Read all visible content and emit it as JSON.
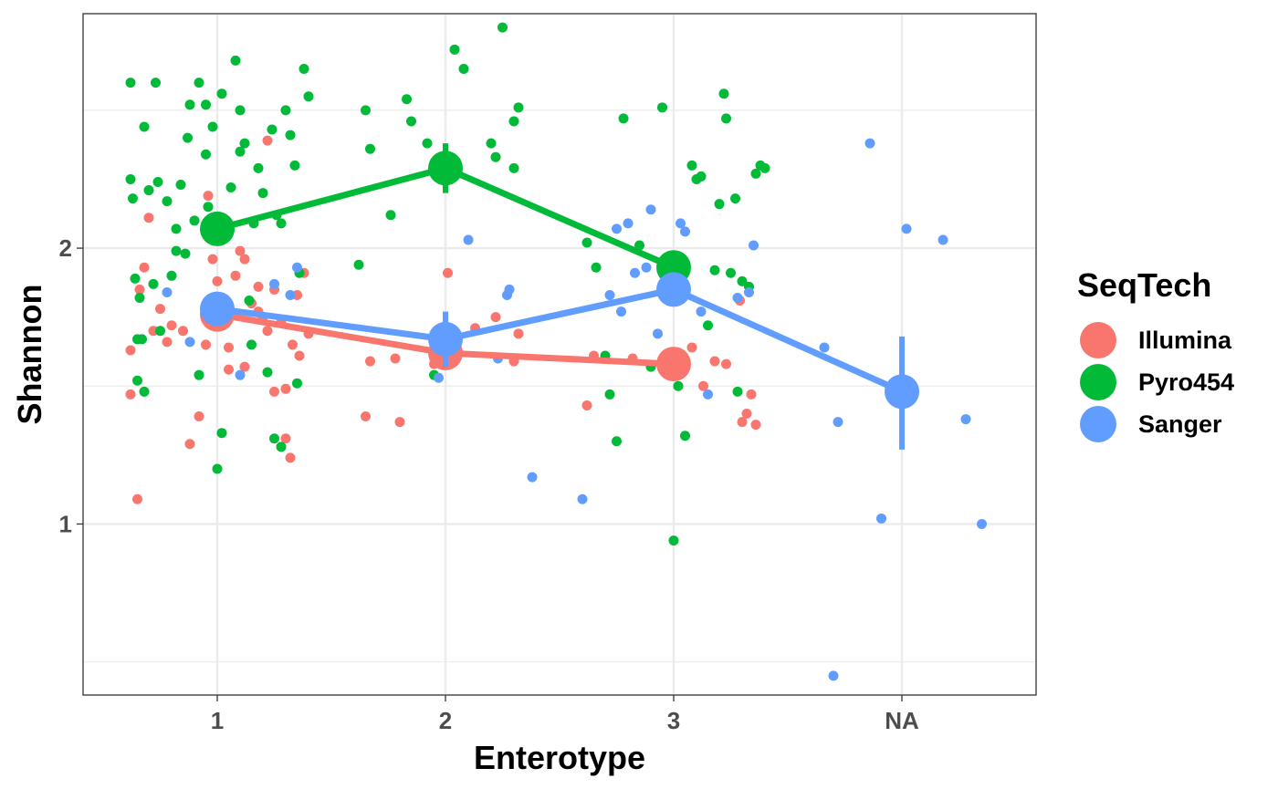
{
  "chart_data": {
    "type": "scatter",
    "xlabel": "Enterotype",
    "ylabel": "Shannon",
    "categories": [
      "1",
      "2",
      "3",
      "NA"
    ],
    "y_ticks": [
      1,
      2
    ],
    "ylim": [
      0.38,
      2.85
    ],
    "grid": true,
    "legend": {
      "title": "SeqTech",
      "placement": "right",
      "entries": [
        {
          "name": "Illumina",
          "color": "#F8766D"
        },
        {
          "name": "Pyro454",
          "color": "#00BA38"
        },
        {
          "name": "Sanger",
          "color": "#619CFF"
        }
      ]
    },
    "series": [
      {
        "name": "Illumina",
        "color": "#F8766D",
        "summary": [
          {
            "x": "1",
            "mean": 1.76,
            "lo": 1.71,
            "hi": 1.81
          },
          {
            "x": "2",
            "mean": 1.62,
            "lo": 1.58,
            "hi": 1.66
          },
          {
            "x": "3",
            "mean": 1.58,
            "lo": 1.54,
            "hi": 1.62
          }
        ],
        "points": [
          [
            0.62,
            1.63
          ],
          [
            0.66,
            1.85
          ],
          [
            0.68,
            1.93
          ],
          [
            0.7,
            2.11
          ],
          [
            0.72,
            1.7
          ],
          [
            0.75,
            1.78
          ],
          [
            0.8,
            1.72
          ],
          [
            0.85,
            1.7
          ],
          [
            0.88,
            1.29
          ],
          [
            0.92,
            1.39
          ],
          [
            0.95,
            1.65
          ],
          [
            0.96,
            2.19
          ],
          [
            0.98,
            1.96
          ],
          [
            1.0,
            1.88
          ],
          [
            1.05,
            1.64
          ],
          [
            1.08,
            1.9
          ],
          [
            1.1,
            1.99
          ],
          [
            1.12,
            1.96
          ],
          [
            1.15,
            1.8
          ],
          [
            1.18,
            1.86
          ],
          [
            1.2,
            1.75
          ],
          [
            1.22,
            1.7
          ],
          [
            1.25,
            1.48
          ],
          [
            1.25,
            1.85
          ],
          [
            1.28,
            1.73
          ],
          [
            1.3,
            1.31
          ],
          [
            1.32,
            1.24
          ],
          [
            1.33,
            1.65
          ],
          [
            1.35,
            1.83
          ],
          [
            1.36,
            1.61
          ],
          [
            1.38,
            1.91
          ],
          [
            1.4,
            1.69
          ],
          [
            0.65,
            1.09
          ],
          [
            0.62,
            1.47
          ],
          [
            1.22,
            2.39
          ],
          [
            1.12,
            1.57
          ],
          [
            1.18,
            1.77
          ],
          [
            1.3,
            1.49
          ],
          [
            0.78,
            1.66
          ],
          [
            1.05,
            1.56
          ],
          [
            1.65,
            1.39
          ],
          [
            1.67,
            1.59
          ],
          [
            1.8,
            1.37
          ],
          [
            1.78,
            1.6
          ],
          [
            2.01,
            1.91
          ],
          [
            2.13,
            1.71
          ],
          [
            2.22,
            1.75
          ],
          [
            2.3,
            1.59
          ],
          [
            2.32,
            1.69
          ],
          [
            1.95,
            1.58
          ],
          [
            2.62,
            1.43
          ],
          [
            2.65,
            1.61
          ],
          [
            2.82,
            1.6
          ],
          [
            3.08,
            1.64
          ],
          [
            3.13,
            1.5
          ],
          [
            3.18,
            1.59
          ],
          [
            3.23,
            1.58
          ],
          [
            3.3,
            1.37
          ],
          [
            3.32,
            1.4
          ],
          [
            3.34,
            1.47
          ],
          [
            3.36,
            1.36
          ],
          [
            3.29,
            1.81
          ]
        ]
      },
      {
        "name": "Pyro454",
        "color": "#00BA38",
        "summary": [
          {
            "x": "1",
            "mean": 2.07,
            "lo": 2.03,
            "hi": 2.11
          },
          {
            "x": "2",
            "mean": 2.29,
            "lo": 2.2,
            "hi": 2.38
          },
          {
            "x": "3",
            "mean": 1.93,
            "lo": 1.86,
            "hi": 1.99
          }
        ],
        "points": [
          [
            0.62,
            2.6
          ],
          [
            0.62,
            2.25
          ],
          [
            0.63,
            2.18
          ],
          [
            0.64,
            1.89
          ],
          [
            0.65,
            1.52
          ],
          [
            0.66,
            1.82
          ],
          [
            0.67,
            1.67
          ],
          [
            0.68,
            2.44
          ],
          [
            0.7,
            2.21
          ],
          [
            0.72,
            1.87
          ],
          [
            0.74,
            2.24
          ],
          [
            0.75,
            1.7
          ],
          [
            0.78,
            2.17
          ],
          [
            0.8,
            1.9
          ],
          [
            0.82,
            2.07
          ],
          [
            0.84,
            2.23
          ],
          [
            0.86,
            1.98
          ],
          [
            0.88,
            2.52
          ],
          [
            0.9,
            2.1
          ],
          [
            0.92,
            1.54
          ],
          [
            0.95,
            2.34
          ],
          [
            0.96,
            2.15
          ],
          [
            0.98,
            2.44
          ],
          [
            1.0,
            1.2
          ],
          [
            1.02,
            2.56
          ],
          [
            1.04,
            2.1
          ],
          [
            1.06,
            2.22
          ],
          [
            1.08,
            2.68
          ],
          [
            1.1,
            2.5
          ],
          [
            1.12,
            2.38
          ],
          [
            1.14,
            1.81
          ],
          [
            1.16,
            2.09
          ],
          [
            1.18,
            2.29
          ],
          [
            1.2,
            2.2
          ],
          [
            1.22,
            1.55
          ],
          [
            1.24,
            2.43
          ],
          [
            1.26,
            2.12
          ],
          [
            1.28,
            2.09
          ],
          [
            1.3,
            2.5
          ],
          [
            1.32,
            2.41
          ],
          [
            1.34,
            2.3
          ],
          [
            1.36,
            1.91
          ],
          [
            1.38,
            2.65
          ],
          [
            1.4,
            2.55
          ],
          [
            0.68,
            1.48
          ],
          [
            0.65,
            1.67
          ],
          [
            0.73,
            2.6
          ],
          [
            0.87,
            2.4
          ],
          [
            0.95,
            2.52
          ],
          [
            1.02,
            1.33
          ],
          [
            1.15,
            1.65
          ],
          [
            1.25,
            1.31
          ],
          [
            1.35,
            1.51
          ],
          [
            1.28,
            1.28
          ],
          [
            1.1,
            2.35
          ],
          [
            0.92,
            2.6
          ],
          [
            0.82,
            1.99
          ],
          [
            1.65,
            2.5
          ],
          [
            1.67,
            2.36
          ],
          [
            1.76,
            2.12
          ],
          [
            1.83,
            2.54
          ],
          [
            1.85,
            2.46
          ],
          [
            1.92,
            2.38
          ],
          [
            1.95,
            1.54
          ],
          [
            2.04,
            2.72
          ],
          [
            2.08,
            2.65
          ],
          [
            2.2,
            2.38
          ],
          [
            2.25,
            2.8
          ],
          [
            2.3,
            2.46
          ],
          [
            2.32,
            2.51
          ],
          [
            2.22,
            2.33
          ],
          [
            2.3,
            2.29
          ],
          [
            1.62,
            1.94
          ],
          [
            2.62,
            2.02
          ],
          [
            2.66,
            1.93
          ],
          [
            2.7,
            1.61
          ],
          [
            2.72,
            1.47
          ],
          [
            2.75,
            1.3
          ],
          [
            2.78,
            2.47
          ],
          [
            2.85,
            2.01
          ],
          [
            2.9,
            1.57
          ],
          [
            2.95,
            2.51
          ],
          [
            3.0,
            0.94
          ],
          [
            3.02,
            1.5
          ],
          [
            3.05,
            1.32
          ],
          [
            3.08,
            2.3
          ],
          [
            3.1,
            2.25
          ],
          [
            3.12,
            2.26
          ],
          [
            3.15,
            1.72
          ],
          [
            3.18,
            1.92
          ],
          [
            3.2,
            2.16
          ],
          [
            3.22,
            2.56
          ],
          [
            3.23,
            2.47
          ],
          [
            3.25,
            1.91
          ],
          [
            3.27,
            2.18
          ],
          [
            3.3,
            1.88
          ],
          [
            3.33,
            1.86
          ],
          [
            3.36,
            2.27
          ],
          [
            3.38,
            2.3
          ],
          [
            3.4,
            2.29
          ],
          [
            3.28,
            1.48
          ]
        ]
      },
      {
        "name": "Sanger",
        "color": "#619CFF",
        "summary": [
          {
            "x": "1",
            "mean": 1.78,
            "lo": 1.73,
            "hi": 1.83
          },
          {
            "x": "2",
            "mean": 1.67,
            "lo": 1.57,
            "hi": 1.77
          },
          {
            "x": "3",
            "mean": 1.85,
            "lo": 1.79,
            "hi": 1.91
          },
          {
            "x": "NA",
            "mean": 1.48,
            "lo": 1.27,
            "hi": 1.68
          }
        ],
        "points": [
          [
            0.78,
            1.84
          ],
          [
            0.88,
            1.66
          ],
          [
            1.1,
            1.54
          ],
          [
            1.25,
            1.87
          ],
          [
            1.32,
            1.83
          ],
          [
            1.35,
            1.93
          ],
          [
            1.97,
            1.53
          ],
          [
            2.1,
            2.03
          ],
          [
            2.23,
            1.6
          ],
          [
            2.28,
            1.85
          ],
          [
            2.27,
            1.83
          ],
          [
            2.38,
            1.17
          ],
          [
            2.6,
            1.09
          ],
          [
            2.72,
            1.83
          ],
          [
            2.75,
            2.07
          ],
          [
            2.77,
            1.77
          ],
          [
            2.8,
            2.09
          ],
          [
            2.83,
            1.91
          ],
          [
            2.88,
            1.93
          ],
          [
            2.9,
            2.14
          ],
          [
            2.93,
            1.69
          ],
          [
            3.03,
            2.09
          ],
          [
            3.05,
            2.06
          ],
          [
            3.12,
            1.77
          ],
          [
            3.15,
            1.47
          ],
          [
            3.28,
            1.82
          ],
          [
            3.33,
            1.84
          ],
          [
            3.35,
            2.01
          ],
          [
            3.66,
            1.64
          ],
          [
            3.7,
            0.45
          ],
          [
            3.72,
            1.37
          ],
          [
            3.86,
            2.38
          ],
          [
            3.91,
            1.02
          ],
          [
            4.02,
            2.07
          ],
          [
            4.18,
            2.03
          ],
          [
            4.28,
            1.38
          ],
          [
            4.35,
            1.0
          ]
        ]
      }
    ]
  }
}
